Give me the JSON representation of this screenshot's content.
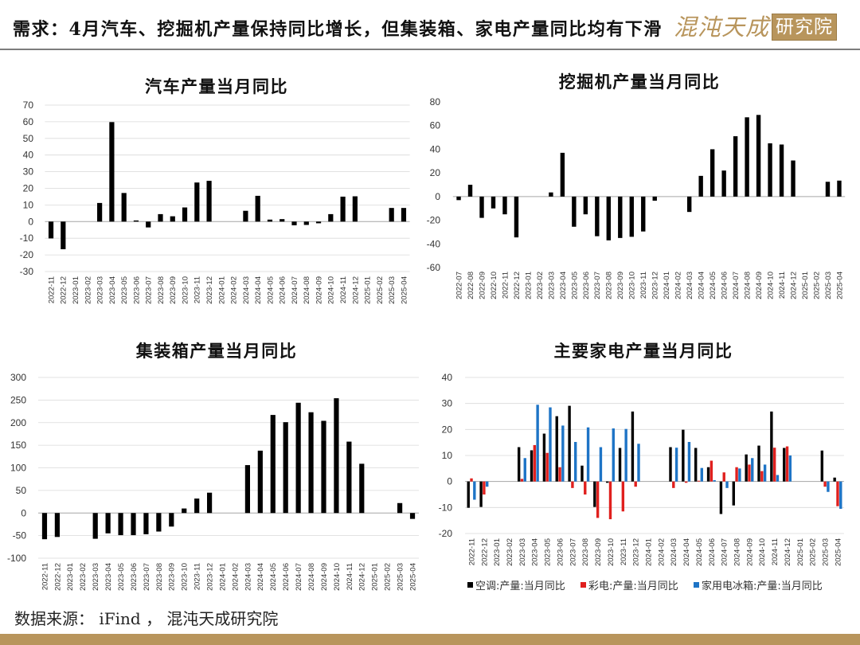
{
  "header": {
    "title": "需求：4月汽车、挖掘机产量保持同比增长，但集装箱、家电产量同比均有下滑",
    "logo_text": "混沌天成",
    "logo_badge": "研究院"
  },
  "footer": {
    "source": "数据来源： iFind ， 混沌天成研究院"
  },
  "theme": {
    "brand_color": "#b8955c"
  },
  "chart_data": [
    {
      "type": "bar",
      "title": "汽车产量当月同比",
      "categories": [
        "2022-11",
        "2022-12",
        "2023-01",
        "2023-02",
        "2023-03",
        "2023-04",
        "2023-05",
        "2023-06",
        "2023-07",
        "2023-08",
        "2023-09",
        "2023-10",
        "2023-11",
        "2023-12",
        "2024-01",
        "2024-02",
        "2024-03",
        "2024-04",
        "2024-05",
        "2024-06",
        "2024-07",
        "2024-08",
        "2024-09",
        "2024-10",
        "2024-11",
        "2024-12",
        "2025-01",
        "2025-02",
        "2025-03",
        "2025-04"
      ],
      "values": [
        -10.1,
        -16.6,
        null,
        null,
        11.2,
        59.8,
        17.2,
        0.7,
        -3.5,
        4.5,
        3.2,
        8.5,
        23.5,
        24.5,
        null,
        null,
        6.5,
        15.5,
        1.2,
        1.5,
        -2.2,
        -2.0,
        -1.0,
        4.5,
        15.0,
        15.2,
        null,
        null,
        8.2,
        8.2
      ],
      "color": "#000000",
      "ylim": [
        -30,
        70
      ],
      "yticks": [
        70,
        60,
        50,
        40,
        30,
        20,
        10,
        0,
        -10,
        -20,
        -30
      ],
      "grid": true
    },
    {
      "type": "bar",
      "title": "挖掘机产量当月同比",
      "categories": [
        "2022-07",
        "2022-08",
        "2022-09",
        "2022-10",
        "2022-11",
        "2022-12",
        "2023-01",
        "2023-02",
        "2023-03",
        "2023-04",
        "2023-05",
        "2023-06",
        "2023-07",
        "2023-08",
        "2023-09",
        "2023-10",
        "2023-11",
        "2023-12",
        "2024-01",
        "2024-02",
        "2024-03",
        "2024-04",
        "2024-05",
        "2024-06",
        "2024-07",
        "2024-08",
        "2024-09",
        "2024-10",
        "2024-11",
        "2024-12",
        "2025-01",
        "2025-02",
        "2025-03",
        "2025-04"
      ],
      "values": [
        -3,
        10,
        -18,
        -10,
        -15,
        -34.5,
        null,
        null,
        3.5,
        37,
        -25.5,
        -15,
        -33.5,
        -37,
        -35,
        -34,
        -29.5,
        -3.5,
        null,
        null,
        -13,
        17.5,
        40,
        22,
        51,
        67,
        69,
        45,
        44,
        30.5,
        null,
        null,
        12.5,
        13.5
      ],
      "color": "#000000",
      "ylim": [
        -60,
        80
      ],
      "yticks": [
        80,
        60,
        40,
        20,
        0,
        -20,
        -40,
        -60
      ],
      "grid": false
    },
    {
      "type": "bar",
      "title": "集装箱产量当月同比",
      "categories": [
        "2022-11",
        "2022-12",
        "2023-01",
        "2023-02",
        "2023-03",
        "2023-04",
        "2023-05",
        "2023-06",
        "2023-07",
        "2023-08",
        "2023-09",
        "2023-10",
        "2023-11",
        "2023-12",
        "2024-01",
        "2024-02",
        "2024-03",
        "2024-04",
        "2024-05",
        "2024-06",
        "2024-07",
        "2024-08",
        "2024-09",
        "2024-10",
        "2024-11",
        "2024-12",
        "2025-01",
        "2025-02",
        "2025-03",
        "2025-04"
      ],
      "values": [
        -58,
        -53,
        null,
        null,
        -57,
        -45,
        -49,
        -49,
        -47,
        -41,
        -30,
        10,
        32,
        45,
        null,
        null,
        106,
        138,
        217,
        201,
        244,
        223,
        204,
        254,
        158,
        109,
        null,
        null,
        22,
        -13
      ],
      "color": "#000000",
      "ylim": [
        -100,
        300
      ],
      "yticks": [
        300,
        250,
        200,
        150,
        100,
        50,
        0,
        -50,
        -100
      ],
      "grid": true
    },
    {
      "type": "bar",
      "title": "主要家电产量当月同比",
      "categories": [
        "2022-11",
        "2022-12",
        "2023-01",
        "2023-02",
        "2023-03",
        "2023-04",
        "2023-05",
        "2023-06",
        "2023-07",
        "2023-08",
        "2023-09",
        "2023-10",
        "2023-11",
        "2023-12",
        "2024-01",
        "2024-02",
        "2024-03",
        "2024-04",
        "2024-05",
        "2024-06",
        "2024-07",
        "2024-08",
        "2024-09",
        "2024-10",
        "2024-11",
        "2024-12",
        "2025-01",
        "2025-02",
        "2025-03",
        "2025-04"
      ],
      "series": [
        {
          "name": "空调:产量:当月同比",
          "color": "#000000",
          "values": [
            -10.1,
            -9.8,
            null,
            null,
            13.2,
            12,
            18.4,
            25.1,
            29.1,
            6.1,
            -9.8,
            -0.5,
            12.9,
            26.9,
            null,
            null,
            13.2,
            19.9,
            12.9,
            5.5,
            -12.5,
            -9.2,
            10.4,
            13.8,
            26.9,
            12.9,
            null,
            null,
            11.9,
            1.5
          ]
        },
        {
          "name": "彩电:产量:当月同比",
          "color": "#e0201e",
          "values": [
            1.2,
            -5,
            null,
            null,
            1,
            14,
            11,
            5.5,
            -2.5,
            -5,
            -14,
            -14.5,
            -11.5,
            -2,
            null,
            null,
            -2.5,
            -0.5,
            0.3,
            8,
            3.5,
            5.5,
            6.5,
            4,
            13,
            13.5,
            null,
            null,
            -2,
            -9.5
          ]
        },
        {
          "name": "家用电冰箱:产量:当月同比",
          "color": "#1e74c6",
          "values": [
            -7,
            -2,
            null,
            null,
            9,
            29.5,
            28.5,
            21.5,
            15.2,
            20.8,
            13.2,
            20.4,
            20.2,
            14.5,
            null,
            null,
            13,
            15.2,
            5.2,
            0.5,
            -2.5,
            5,
            9,
            6.5,
            2.5,
            10,
            null,
            null,
            -4,
            -10.5
          ]
        }
      ],
      "ylim": [
        -20,
        40
      ],
      "yticks": [
        40,
        30,
        20,
        10,
        0,
        -10,
        -20
      ],
      "grid": true,
      "legend": "bottom"
    }
  ]
}
